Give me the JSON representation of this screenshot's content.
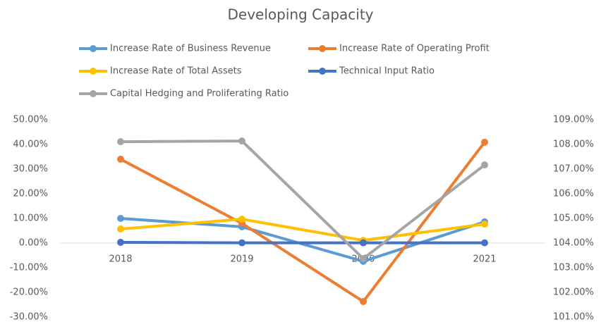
{
  "chart_data": {
    "type": "line",
    "title": "Developing Capacity",
    "categories": [
      "2018",
      "2019",
      "2020",
      "2021"
    ],
    "series": [
      {
        "name": "Increase Rate of Business Revenue",
        "color": "#5b9bd5",
        "values": [
          10.0,
          6.6,
          -7.4,
          8.6
        ]
      },
      {
        "name": "Increase Rate of Operating Profit",
        "color": "#ed7d31",
        "values": [
          34.0,
          8.0,
          -23.7,
          40.9
        ]
      },
      {
        "name": "Increase Rate of Total Assets",
        "color": "#ffc000",
        "values": [
          5.7,
          9.7,
          1.1,
          7.7
        ]
      },
      {
        "name": "Technical Input Ratio",
        "color": "#4472c4",
        "values": [
          0.3,
          0.1,
          0.1,
          0.1
        ]
      },
      {
        "name": "Capital Hedging and Proliferating Ratio",
        "color": "#a5a5a5",
        "values": [
          108.11,
          108.14,
          103.37,
          107.17
        ],
        "axis": "y2"
      }
    ],
    "ylim": [
      -30,
      50
    ],
    "yticks": [
      {
        "value": -30,
        "label": "-30.00%"
      },
      {
        "value": -20,
        "label": "-20.00%"
      },
      {
        "value": -10,
        "label": "-10.00%"
      },
      {
        "value": 0,
        "label": "0.00%"
      },
      {
        "value": 10,
        "label": "10.00%"
      },
      {
        "value": 20,
        "label": "20.00%"
      },
      {
        "value": 30,
        "label": "30.00%"
      },
      {
        "value": 40,
        "label": "40.00%"
      },
      {
        "value": 50,
        "label": "50.00%"
      }
    ],
    "y2lim": [
      101,
      109
    ],
    "y2ticks": [
      {
        "value": 101,
        "label": "101.00%"
      },
      {
        "value": 102,
        "label": "102.00%"
      },
      {
        "value": 103,
        "label": "103.00%"
      },
      {
        "value": 104,
        "label": "104.00%"
      },
      {
        "value": 105,
        "label": "105.00%"
      },
      {
        "value": 106,
        "label": "106.00%"
      },
      {
        "value": 107,
        "label": "107.00%"
      },
      {
        "value": 108,
        "label": "108.00%"
      },
      {
        "value": 109,
        "label": "109.00%"
      }
    ],
    "grid": false,
    "legend": "top"
  }
}
